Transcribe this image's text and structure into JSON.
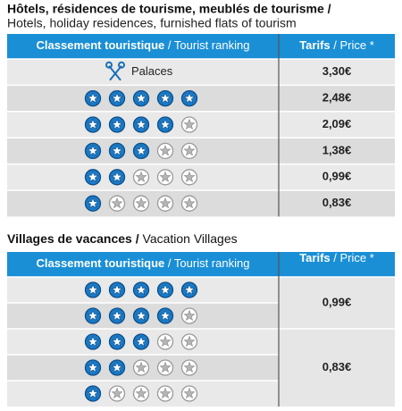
{
  "sections": [
    {
      "title": {
        "fr": "Hôtels, résidences de tourisme, meublés de tourisme /",
        "en": "Hotels, holiday residences, furnished flats of tourism"
      },
      "header": {
        "ranking": {
          "fr": "Classement touristique",
          "en": "/ Tourist ranking"
        },
        "price": {
          "fr": "Tarifs",
          "en": "/ Price *"
        }
      },
      "groups": [
        {
          "price": "3,30€",
          "rows": [
            {
              "label": "Palaces"
            }
          ]
        },
        {
          "price": "2,48€",
          "rows": [
            {
              "stars": 5
            }
          ]
        },
        {
          "price": "2,09€",
          "rows": [
            {
              "stars": 4
            }
          ]
        },
        {
          "price": "1,38€",
          "rows": [
            {
              "stars": 3
            }
          ]
        },
        {
          "price": "0,99€",
          "rows": [
            {
              "stars": 2
            }
          ]
        },
        {
          "price": "0,83€",
          "rows": [
            {
              "stars": 1
            }
          ]
        }
      ]
    },
    {
      "title": {
        "fr": "Villages de vacances /",
        "en": "Vacation Villages"
      },
      "header": {
        "ranking": {
          "fr": "Classement touristique",
          "en": "/ Tourist ranking"
        },
        "price": {
          "fr": "Tarifs",
          "en": "/ Price *"
        }
      },
      "groups": [
        {
          "price": "0,99€",
          "rows": [
            {
              "stars": 5
            },
            {
              "stars": 4
            }
          ]
        },
        {
          "price": "0,83€",
          "rows": [
            {
              "stars": 3
            },
            {
              "stars": 2
            },
            {
              "stars": 1
            }
          ]
        }
      ]
    }
  ]
}
